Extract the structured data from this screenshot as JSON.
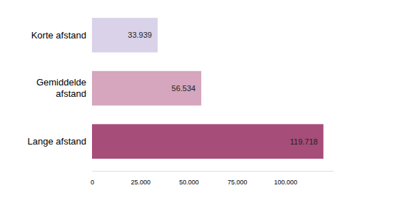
{
  "chart_data": {
    "type": "bar",
    "orientation": "horizontal",
    "categories": [
      "Korte afstand",
      "Gemiddelde afstand",
      "Lange afstand"
    ],
    "values": [
      33939,
      56534,
      119718
    ],
    "value_labels": [
      "33.939",
      "56.534",
      "119.718"
    ],
    "colors": [
      "#d9d2e9",
      "#d5a6bd",
      "#a64d79"
    ],
    "xlim": [
      0,
      125000
    ],
    "xticks": [
      0,
      {
        "value": 25000,
        "label": "25.000"
      },
      {
        "value": 50000,
        "label": "50.000"
      },
      {
        "value": 75000,
        "label": "75.000"
      },
      {
        "value": 100000,
        "label": "100.000"
      }
    ],
    "grid": false,
    "data_labels": true
  }
}
